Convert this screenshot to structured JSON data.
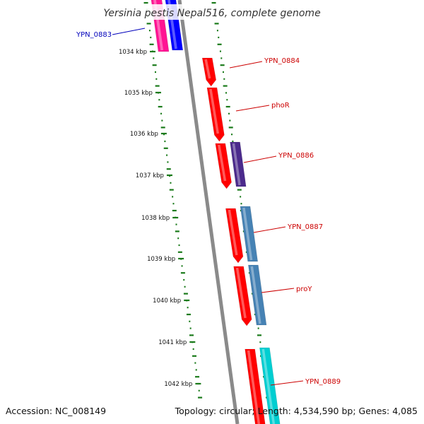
{
  "title": "Yersinia pestis Nepal516, complete genome",
  "footer": {
    "accession": "Accession: NC_008149",
    "summary": "Topology: circular; Length: 4,534,590 bp; Genes: 4,085"
  },
  "colors": {
    "backbone": "#8a8a8a",
    "tick": "#1a7a1a",
    "label_red": "#cc0000",
    "label_blue": "#0000bb"
  },
  "ticks": [
    "1034 kbp",
    "1035 kbp",
    "1036 kbp",
    "1037 kbp",
    "1038 kbp",
    "1039 kbp",
    "1040 kbp",
    "1041 kbp",
    "1042 kbp"
  ],
  "genes": [
    {
      "name": "YPN_0883",
      "label_color": "#0000bb",
      "feature_colors": [
        "#ff1493",
        "#0000ff"
      ]
    },
    {
      "name": "YPN_0884",
      "label_color": "#cc0000",
      "feature_colors": [
        "#ff0000"
      ]
    },
    {
      "name": "phoR",
      "label_color": "#cc0000",
      "feature_colors": [
        "#ff0000"
      ]
    },
    {
      "name": "YPN_0886",
      "label_color": "#cc0000",
      "feature_colors": [
        "#ff0000",
        "#4b2a8c"
      ]
    },
    {
      "name": "YPN_0887",
      "label_color": "#cc0000",
      "feature_colors": [
        "#ff0000",
        "#4682b4"
      ]
    },
    {
      "name": "proY",
      "label_color": "#cc0000",
      "feature_colors": [
        "#ff0000",
        "#4682b4"
      ]
    },
    {
      "name": "YPN_0889",
      "label_color": "#cc0000",
      "feature_colors": [
        "#ff0000",
        "#00ced1"
      ]
    }
  ]
}
